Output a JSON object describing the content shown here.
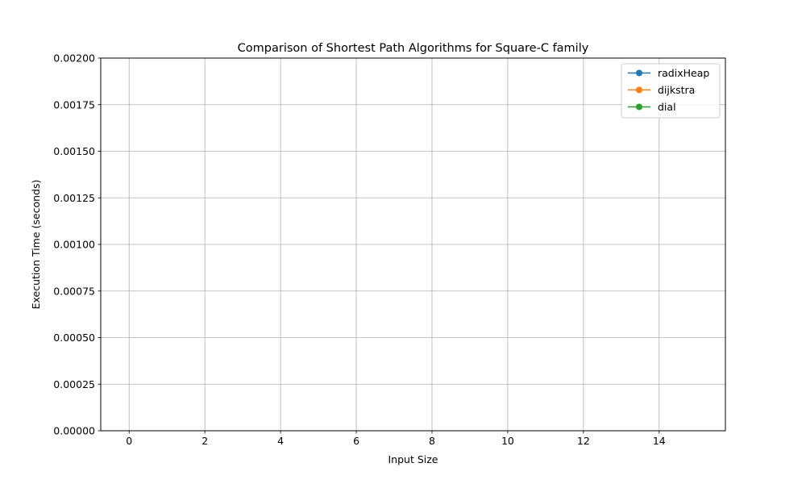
{
  "chart_data": {
    "type": "line",
    "title": "Comparison of Shortest Path Algorithms for Square-C family",
    "xlabel": "Input Size",
    "ylabel": "Execution Time (seconds)",
    "xlim": [
      -0.75,
      15.75
    ],
    "ylim": [
      0,
      0.002
    ],
    "x_ticks": [
      0,
      2,
      4,
      6,
      8,
      10,
      12,
      14
    ],
    "x_tick_labels": [
      "0",
      "2",
      "4",
      "6",
      "8",
      "10",
      "12",
      "14"
    ],
    "y_ticks": [
      0,
      0.00025,
      0.0005,
      0.00075,
      0.001,
      0.00125,
      0.0015,
      0.00175,
      0.002
    ],
    "y_tick_labels": [
      "0.00000",
      "0.00025",
      "0.00050",
      "0.00075",
      "0.00100",
      "0.00125",
      "0.00150",
      "0.00175",
      "0.00200"
    ],
    "grid": true,
    "legend_position": "top-right",
    "series": [
      {
        "name": "radixHeap",
        "color": "#1f77b4",
        "marker": "circle",
        "x": [],
        "y": []
      },
      {
        "name": "dijkstra",
        "color": "#ff7f0e",
        "marker": "circle",
        "x": [],
        "y": []
      },
      {
        "name": "dial",
        "color": "#2ca02c",
        "marker": "circle",
        "x": [],
        "y": []
      }
    ]
  }
}
